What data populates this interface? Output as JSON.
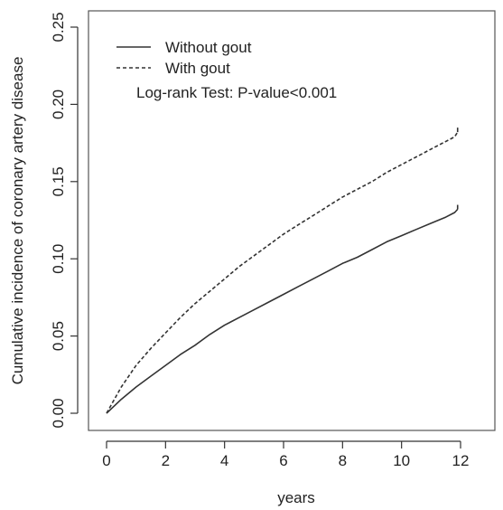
{
  "chart_data": {
    "type": "line",
    "title": "",
    "xlabel": "years",
    "ylabel": "Cumulative incidence of coronary artery disease",
    "xlim": [
      0,
      12
    ],
    "ylim": [
      0,
      0.25
    ],
    "xticks": [
      "0",
      "2",
      "4",
      "6",
      "8",
      "10",
      "12"
    ],
    "yticks": [
      "0.00",
      "0.05",
      "0.10",
      "0.15",
      "0.20",
      "0.25"
    ],
    "grid": false,
    "legend_position": "top-left",
    "annotation": "Log-rank Test: P-value<0.001",
    "series": [
      {
        "name": "Without gout",
        "line_style": "solid",
        "color": "#333333",
        "x": [
          0,
          0.5,
          1,
          1.5,
          2,
          2.5,
          3,
          3.5,
          4,
          4.5,
          5,
          5.5,
          6,
          6.5,
          7,
          7.5,
          8,
          8.5,
          9,
          9.5,
          10,
          10.5,
          11,
          11.5,
          11.8,
          11.9
        ],
        "y": [
          0,
          0.009,
          0.017,
          0.024,
          0.031,
          0.038,
          0.044,
          0.051,
          0.057,
          0.062,
          0.067,
          0.072,
          0.077,
          0.082,
          0.087,
          0.092,
          0.097,
          0.101,
          0.106,
          0.111,
          0.115,
          0.119,
          0.123,
          0.127,
          0.13,
          0.132
        ]
      },
      {
        "name": "With gout",
        "line_style": "dashed",
        "color": "#333333",
        "x": [
          0,
          0.5,
          1,
          1.5,
          2,
          2.5,
          3,
          3.5,
          4,
          4.5,
          5,
          5.5,
          6,
          6.5,
          7,
          7.5,
          8,
          8.5,
          9,
          9.5,
          10,
          10.5,
          11,
          11.5,
          11.8,
          11.9
        ],
        "y": [
          0,
          0.017,
          0.031,
          0.042,
          0.052,
          0.062,
          0.071,
          0.079,
          0.087,
          0.095,
          0.102,
          0.109,
          0.116,
          0.122,
          0.128,
          0.134,
          0.14,
          0.145,
          0.15,
          0.156,
          0.161,
          0.166,
          0.171,
          0.176,
          0.179,
          0.182
        ]
      }
    ]
  }
}
